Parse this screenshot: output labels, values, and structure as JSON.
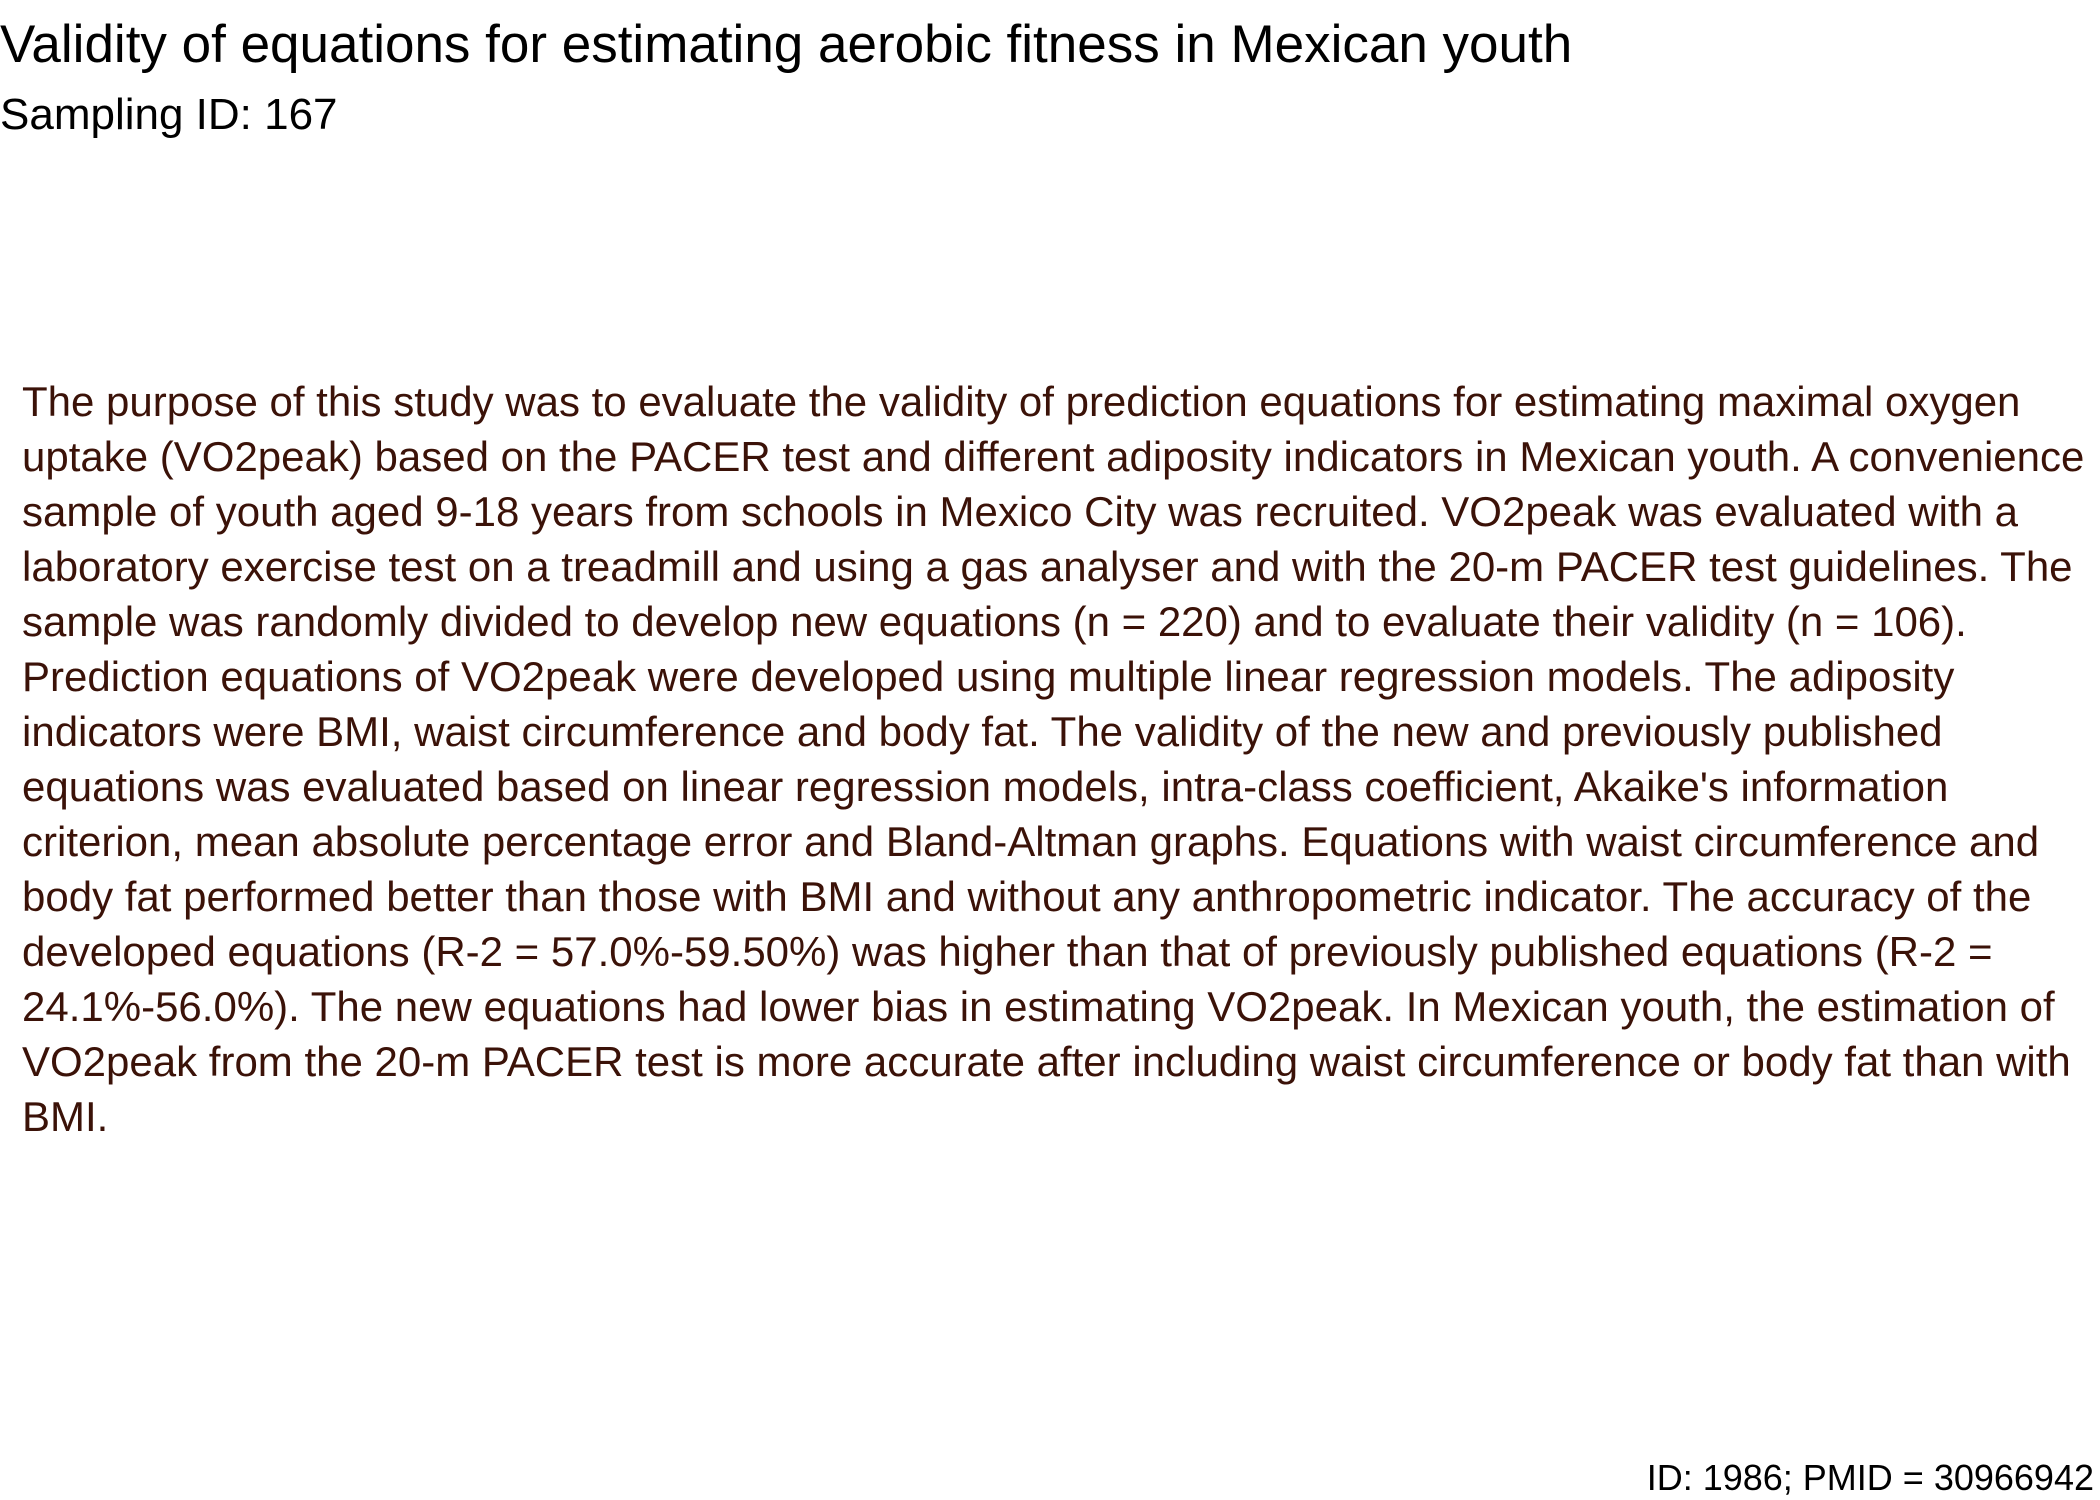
{
  "document": {
    "title": "Validity of equations for estimating aerobic fitness in Mexican youth",
    "subtitle": "Sampling ID: 167",
    "abstract": "The purpose of this study was to evaluate the validity of prediction equations for estimating maximal oxygen uptake (VO2peak) based on the PACER test and different adiposity indicators in Mexican youth. A convenience sample of youth aged 9-18 years from schools in Mexico City was recruited. VO2peak was evaluated with a laboratory exercise test on a treadmill and using a gas analyser and with the 20-m PACER test guidelines. The sample was randomly divided to develop new equations (n = 220) and to evaluate their validity (n = 106). Prediction equations of VO2peak were developed using multiple linear regression models. The adiposity indicators were BMI, waist circumference and body fat. The validity of the new and previously published equations was evaluated based on linear regression models, intra-class coefficient, Akaike's information criterion, mean absolute percentage error and Bland-Altman graphs. Equations with waist circumference and body fat performed better than those with BMI and without any anthropometric indicator. The accuracy of the developed equations (R-2 = 57.0%-59.50%) was higher than that of previously published equations (R-2 = 24.1%-56.0%). The new equations had lower bias in estimating VO2peak. In Mexican youth, the estimation of VO2peak from the 20-m PACER test is more accurate after including waist circumference or body fat than with BMI.",
    "footer": "ID: 1986; PMID = 30966942"
  },
  "colors": {
    "title_text": "#000000",
    "abstract_text": "#3b1208",
    "background": "#ffffff"
  }
}
